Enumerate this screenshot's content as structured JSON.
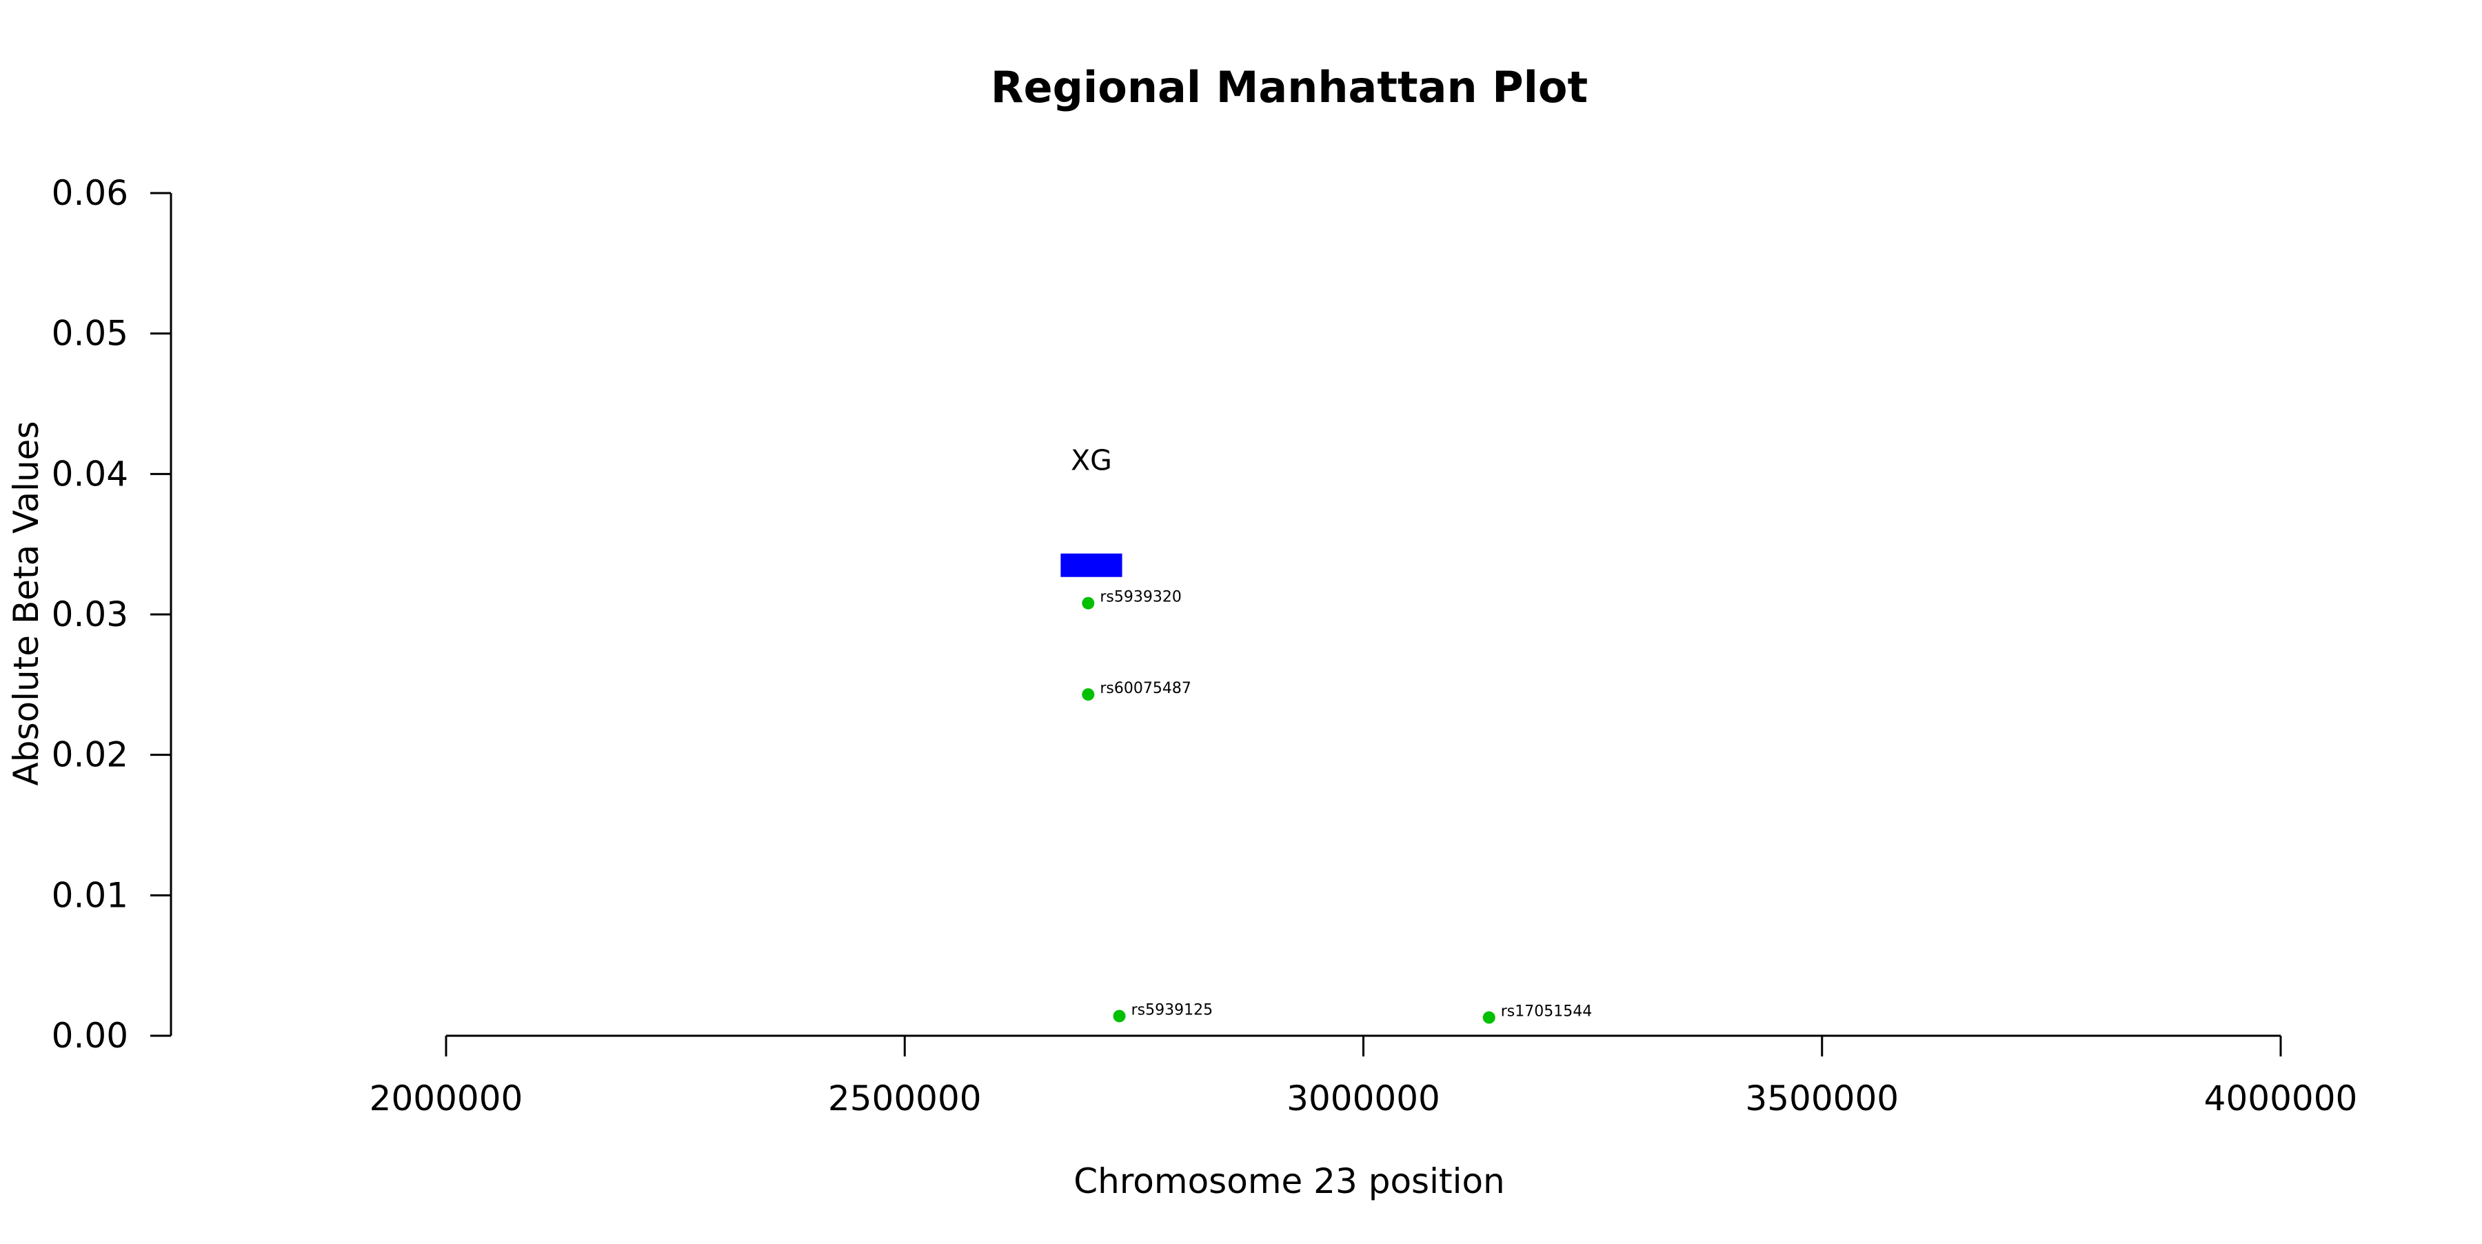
{
  "chart_data": {
    "type": "scatter",
    "title": "Regional Manhattan Plot",
    "xlabel": "Chromosome 23 position",
    "ylabel": "Absolute Beta Values",
    "xlim": [
      1700000,
      4050000
    ],
    "ylim": [
      0,
      0.06
    ],
    "x_ticks": [
      2000000,
      2500000,
      3000000,
      3500000,
      4000000
    ],
    "x_tick_labels": [
      "2000000",
      "2500000",
      "3000000",
      "3500000",
      "4000000"
    ],
    "y_ticks": [
      0,
      0.01,
      0.02,
      0.03,
      0.04,
      0.05,
      0.06
    ],
    "y_tick_labels": [
      "0.00",
      "0.01",
      "0.02",
      "0.03",
      "0.04",
      "0.05",
      "0.06"
    ],
    "grid": false,
    "point_color": "#00c000",
    "points": [
      {
        "label": "rs5939320",
        "x": 2700000,
        "y": 0.0308
      },
      {
        "label": "rs60075487",
        "x": 2700000,
        "y": 0.0243
      },
      {
        "label": "rs5939125",
        "x": 2734000,
        "y": 0.0014
      },
      {
        "label": "rs17051544",
        "x": 3137000,
        "y": 0.0013
      }
    ],
    "genes": [
      {
        "name": "XG",
        "start": 2670000,
        "end": 2737000,
        "y": 0.0335,
        "color": "#0000ff"
      }
    ]
  }
}
